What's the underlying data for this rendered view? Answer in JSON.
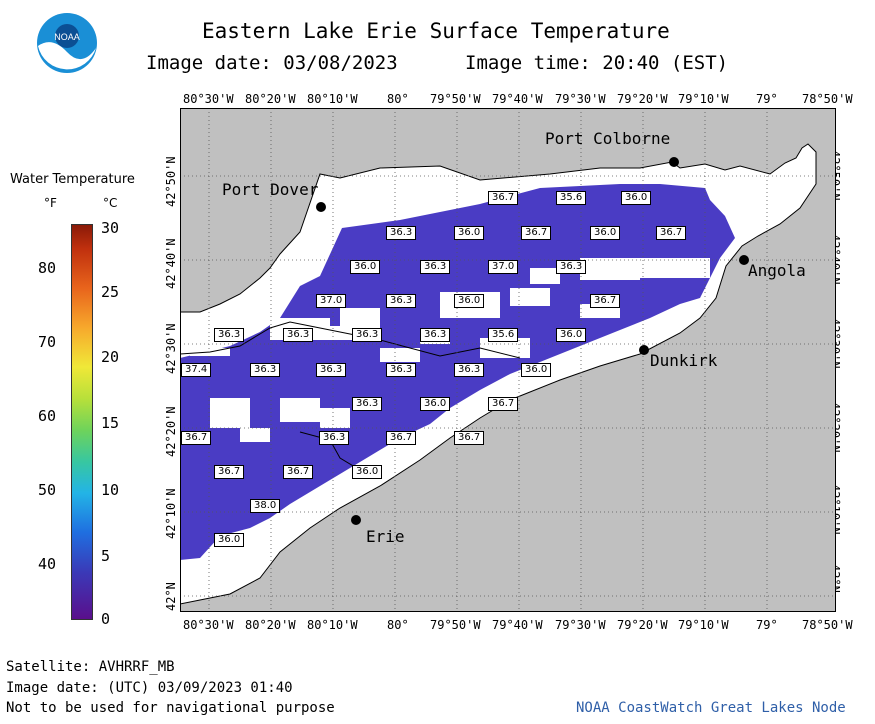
{
  "header": {
    "title": "Eastern Lake Erie Surface Temperature",
    "image_date": "Image date: 03/08/2023",
    "image_time": "Image time: 20:40 (EST)"
  },
  "logo": {
    "text": "NOAA"
  },
  "legend": {
    "title": "Water Temperature",
    "unit_f": "°F",
    "unit_c": "°C",
    "f_ticks": [
      "80",
      "70",
      "60",
      "50",
      "40"
    ],
    "c_ticks": [
      "30",
      "25",
      "20",
      "15",
      "10",
      "5",
      "0"
    ]
  },
  "axes": {
    "lon_ticks": [
      "80°30'W",
      "80°20'W",
      "80°10'W",
      "80°",
      "79°50'W",
      "79°40'W",
      "79°30'W",
      "79°20'W",
      "79°10'W",
      "79°",
      "78°50'W"
    ],
    "lat_ticks": [
      "42°50'N",
      "42°40'N",
      "42°30'N",
      "42°20'N",
      "42°10'N",
      "42°N"
    ]
  },
  "places": {
    "port_colborne": "Port Colborne",
    "port_dover": "Port Dover",
    "angola": "Angola",
    "dunkirk": "Dunkirk",
    "erie": "Erie"
  },
  "temps": [
    "36.7",
    "35.6",
    "36.0",
    "36.3",
    "36.0",
    "36.7",
    "36.0",
    "36.7",
    "36.0",
    "36.3",
    "37.0",
    "36.3",
    "37.0",
    "36.3",
    "36.0",
    "36.7",
    "36.3",
    "36.3",
    "36.3",
    "36.3",
    "35.6",
    "36.0",
    "37.4",
    "36.3",
    "36.3",
    "36.3",
    "36.3",
    "36.0",
    "36.3",
    "36.0",
    "36.7",
    "36.3",
    "36.7",
    "36.7",
    "36.7",
    "36.0",
    "36.7",
    "36.7",
    "38.0",
    "36.0"
  ],
  "footer": {
    "satellite": "Satellite: AVHRRF_MB",
    "utc_date": "Image date: (UTC) 03/09/2023  01:40",
    "disclaimer": "Not to be used for navigational purpose",
    "credit": "NOAA CoastWatch Great Lakes Node"
  },
  "colors": {
    "land": "#c0c0c0",
    "water_nodata": "#ffffff",
    "water_cold": "#4a3cc4",
    "coast_line": "#000000",
    "credit_text": "#2f5fa8"
  }
}
